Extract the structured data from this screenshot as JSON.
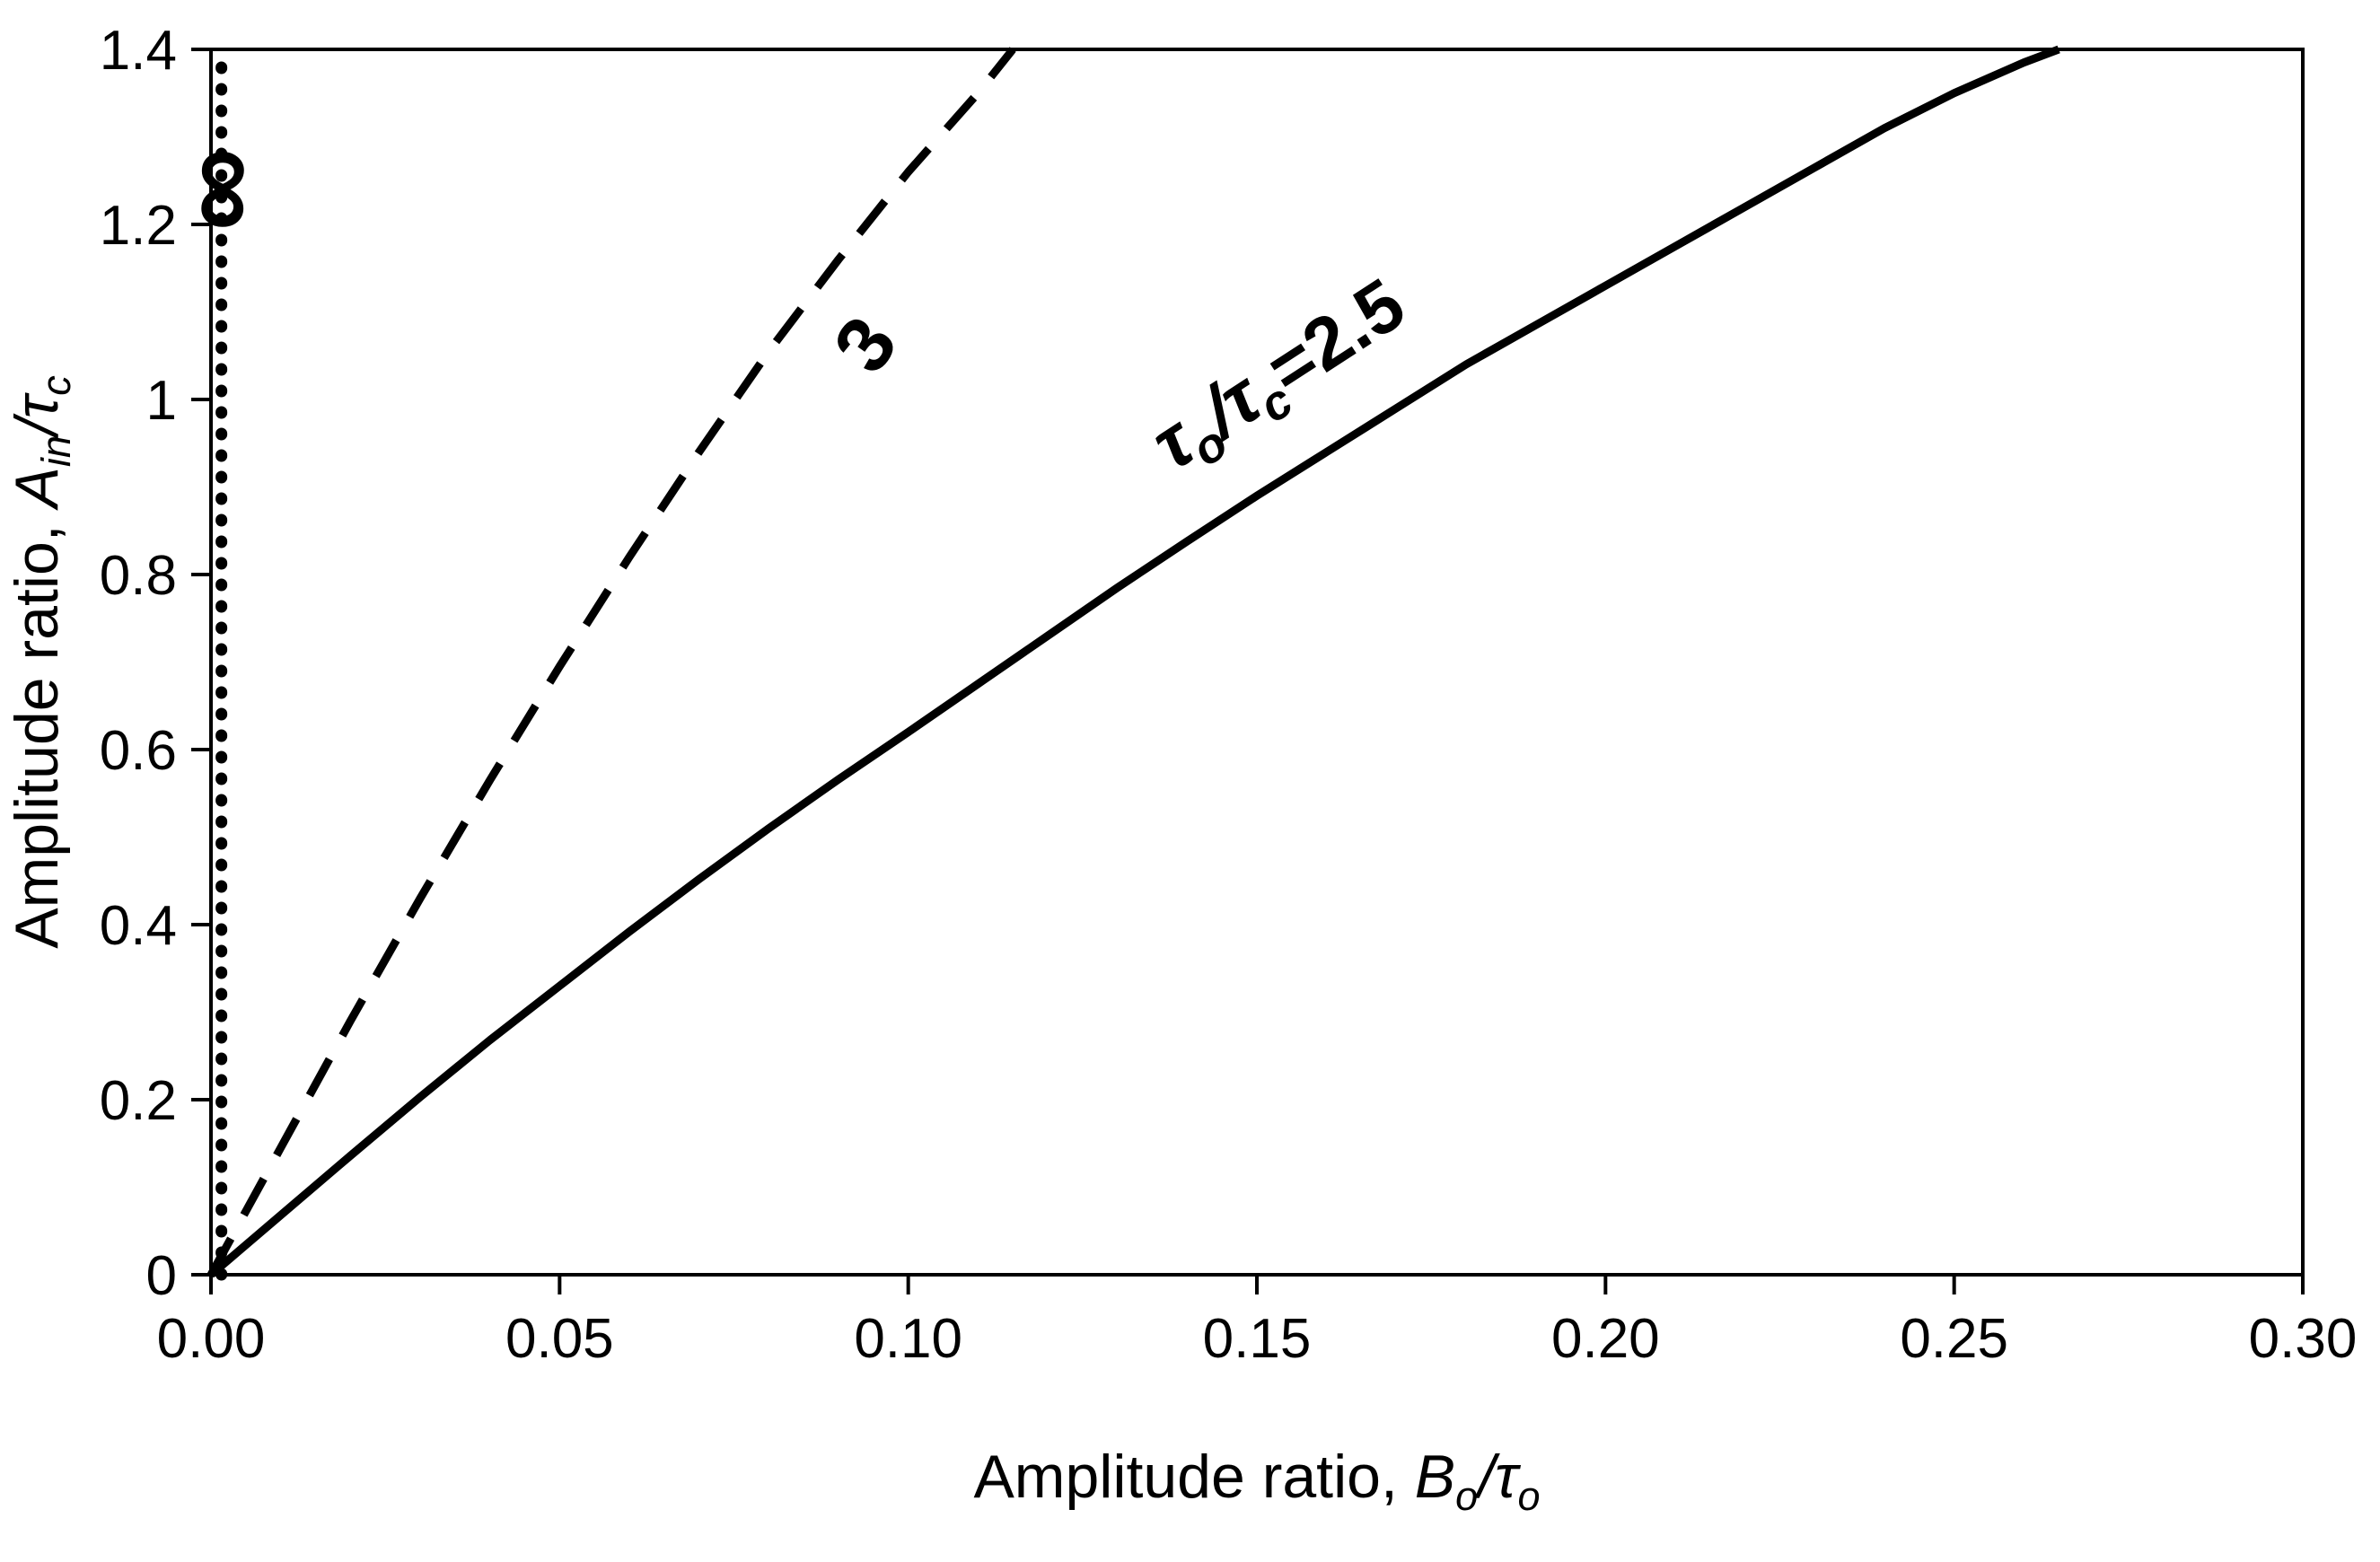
{
  "figure": {
    "background_color": "#ffffff",
    "ink_color": "#000000"
  },
  "chart_data": {
    "type": "line",
    "title": "",
    "xlabel": "Amplitude ratio, Bo/τo",
    "ylabel": "Amplitude ratio, Ain/τc",
    "xlabel_parts": [
      {
        "t": "Amplitude ratio, "
      },
      {
        "t": "B",
        "i": true
      },
      {
        "t": "o",
        "i": true,
        "sub": true
      },
      {
        "t": "/",
        "i": true
      },
      {
        "t": "τ",
        "i": true
      },
      {
        "t": "o",
        "i": true,
        "sub": true
      }
    ],
    "ylabel_parts": [
      {
        "t": "Amplitude ratio, "
      },
      {
        "t": "A",
        "i": true
      },
      {
        "t": "in",
        "i": true,
        "sub": true
      },
      {
        "t": "/",
        "i": true
      },
      {
        "t": "τ",
        "i": true
      },
      {
        "t": "c",
        "i": true,
        "sub": true
      }
    ],
    "xlim": [
      0,
      0.3
    ],
    "ylim": [
      0,
      1.4
    ],
    "x_ticks": [
      0,
      0.05,
      0.1,
      0.15,
      0.2,
      0.25,
      0.3
    ],
    "x_tick_labels": [
      "0.00",
      "0.05",
      "0.10",
      "0.15",
      "0.20",
      "0.25",
      "0.30"
    ],
    "y_ticks": [
      0,
      0.2,
      0.4,
      0.6,
      0.8,
      1.0,
      1.2,
      1.4
    ],
    "y_tick_labels": [
      "0",
      "0.2",
      "0.4",
      "0.6",
      "0.8",
      "1",
      "1.2",
      "1.4"
    ],
    "grid": false,
    "legend": "inline-curve-labels",
    "series": [
      {
        "name": "τo/τc = ∞",
        "style": "dotted",
        "points": [
          [
            0.0015,
            0
          ],
          [
            0.0015,
            1.4
          ]
        ]
      },
      {
        "name": "τo/τc = 3",
        "style": "dashed",
        "points": [
          [
            0,
            0
          ],
          [
            0.01,
            0.145
          ],
          [
            0.02,
            0.29
          ],
          [
            0.03,
            0.43
          ],
          [
            0.04,
            0.565
          ],
          [
            0.05,
            0.695
          ],
          [
            0.06,
            0.82
          ],
          [
            0.07,
            0.94
          ],
          [
            0.08,
            1.055
          ],
          [
            0.09,
            1.16
          ],
          [
            0.1,
            1.26
          ],
          [
            0.11,
            1.35
          ],
          [
            0.115,
            1.4
          ]
        ]
      },
      {
        "name": "τo/τc = 2.5",
        "style": "solid",
        "points": [
          [
            0,
            0
          ],
          [
            0.01,
            0.068
          ],
          [
            0.02,
            0.136
          ],
          [
            0.03,
            0.203
          ],
          [
            0.04,
            0.268
          ],
          [
            0.05,
            0.33
          ],
          [
            0.06,
            0.392
          ],
          [
            0.07,
            0.452
          ],
          [
            0.08,
            0.51
          ],
          [
            0.09,
            0.566
          ],
          [
            0.1,
            0.62
          ],
          [
            0.11,
            0.675
          ],
          [
            0.12,
            0.73
          ],
          [
            0.13,
            0.785
          ],
          [
            0.14,
            0.838
          ],
          [
            0.15,
            0.89
          ],
          [
            0.16,
            0.94
          ],
          [
            0.17,
            0.99
          ],
          [
            0.18,
            1.04
          ],
          [
            0.19,
            1.085
          ],
          [
            0.2,
            1.13
          ],
          [
            0.21,
            1.175
          ],
          [
            0.22,
            1.22
          ],
          [
            0.23,
            1.265
          ],
          [
            0.24,
            1.31
          ],
          [
            0.25,
            1.35
          ],
          [
            0.26,
            1.385
          ],
          [
            0.265,
            1.4
          ]
        ]
      }
    ],
    "annotations": [
      {
        "name": "curve-label-infinity",
        "parts": [
          {
            "t": "∞",
            "b": true
          }
        ],
        "x": 0.0065,
        "y": 1.24,
        "rotate": -90,
        "size": 130,
        "bold": true
      },
      {
        "name": "curve-label-3",
        "parts": [
          {
            "t": "3",
            "b": true
          }
        ],
        "x": 0.097,
        "y": 1.045,
        "rotate": -55,
        "size": 88,
        "bold": true
      },
      {
        "name": "curve-label-2-5",
        "parts": [
          {
            "t": "τ",
            "i": true
          },
          {
            "t": "o",
            "i": true,
            "sub": true
          },
          {
            "t": "/",
            "i": true
          },
          {
            "t": "τ",
            "i": true
          },
          {
            "t": "c",
            "i": true,
            "sub": true
          },
          {
            "t": "=2.5"
          }
        ],
        "x": 0.155,
        "y": 1.005,
        "rotate": -33,
        "size": 82,
        "bold": true
      }
    ]
  }
}
